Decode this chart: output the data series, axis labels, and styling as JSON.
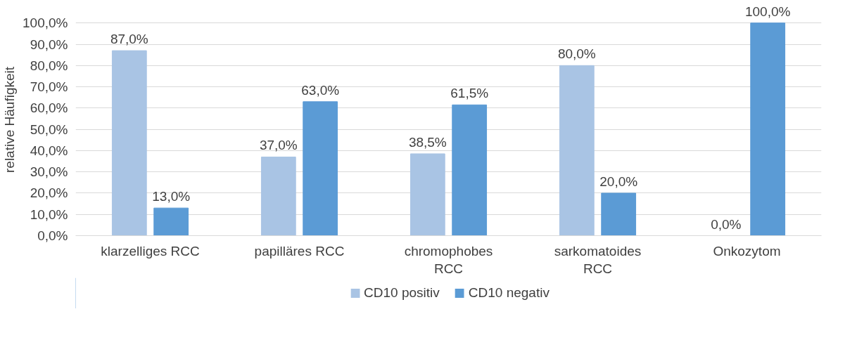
{
  "chart_data": {
    "type": "bar",
    "ylabel": "relative Häufigkeit",
    "categories": [
      "klarzelliges RCC",
      "papilläres RCC",
      "chromophobes\nRCC",
      "sarkomatoides\nRCC",
      "Onkozytom"
    ],
    "series": [
      {
        "name": "CD10 positiv",
        "color": "#a9c4e4",
        "values": [
          87.0,
          37.0,
          38.5,
          80.0,
          0.0
        ],
        "value_labels": [
          "87,0%",
          "37,0%",
          "38,5%",
          "80,0%",
          "0,0%"
        ]
      },
      {
        "name": "CD10 negativ",
        "color": "#5b9bd5",
        "values": [
          13.0,
          63.0,
          61.5,
          20.0,
          100.0
        ],
        "value_labels": [
          "13,0%",
          "63,0%",
          "61,5%",
          "20,0%",
          "100,0%"
        ]
      }
    ],
    "ylim": [
      0,
      100
    ],
    "yticks": [
      {
        "value": 0,
        "label": "0,0%"
      },
      {
        "value": 10,
        "label": "10,0%"
      },
      {
        "value": 20,
        "label": "20,0%"
      },
      {
        "value": 30,
        "label": "30,0%"
      },
      {
        "value": 40,
        "label": "40,0%"
      },
      {
        "value": 50,
        "label": "50,0%"
      },
      {
        "value": 60,
        "label": "60,0%"
      },
      {
        "value": 70,
        "label": "70,0%"
      },
      {
        "value": 80,
        "label": "80,0%"
      },
      {
        "value": 90,
        "label": "90,0%"
      },
      {
        "value": 100,
        "label": "100,0%"
      }
    ],
    "grid": "y",
    "legend": "bottom"
  }
}
